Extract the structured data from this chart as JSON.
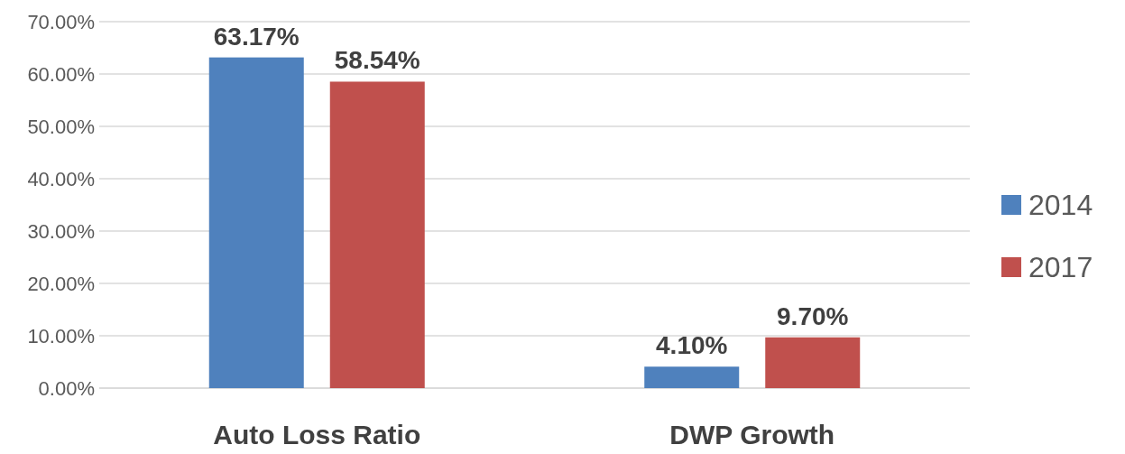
{
  "chart_data": {
    "type": "bar",
    "categories": [
      "Auto Loss Ratio",
      "DWP Growth"
    ],
    "series": [
      {
        "name": "2014",
        "color": "#4f81bd",
        "values": [
          63.17,
          4.1
        ],
        "value_labels": [
          "63.17%",
          "4.10%"
        ]
      },
      {
        "name": "2017",
        "color": "#c0504d",
        "values": [
          58.54,
          9.7
        ],
        "value_labels": [
          "58.54%",
          "9.70%"
        ]
      }
    ],
    "ylim": [
      0,
      70
    ],
    "yticks": [
      {
        "value": 0,
        "label": "0.00%"
      },
      {
        "value": 10,
        "label": "10.00%"
      },
      {
        "value": 20,
        "label": "20.00%"
      },
      {
        "value": 30,
        "label": "30.00%"
      },
      {
        "value": 40,
        "label": "40.00%"
      },
      {
        "value": 50,
        "label": "50.00%"
      },
      {
        "value": 60,
        "label": "60.00%"
      },
      {
        "value": 70,
        "label": "70.00%"
      }
    ],
    "grid": "y",
    "legend": "right"
  }
}
